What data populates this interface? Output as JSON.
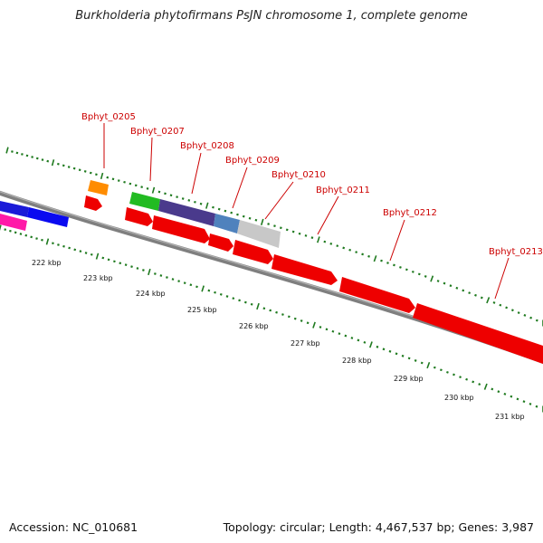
{
  "title": "Burkholderia phytofirmans PsJN chromosome 1, complete genome",
  "accession": "Accession: NC_010681",
  "topology": "Topology: circular; Length: 4,467,537 bp; Genes: 3,987",
  "colors": {
    "tick": "#1f7a1f",
    "backbone": "#7f7f7f",
    "label": "#cc0000"
  },
  "gene_labels": [
    {
      "text": "Bphyt_0205"
    },
    {
      "text": "Bphyt_0207"
    },
    {
      "text": "Bphyt_0208"
    },
    {
      "text": "Bphyt_0209"
    },
    {
      "text": "Bphyt_0210"
    },
    {
      "text": "Bphyt_0211"
    },
    {
      "text": "Bphyt_0212"
    },
    {
      "text": "Bphyt_0213"
    }
  ],
  "kbp_labels": [
    "222 kbp",
    "223 kbp",
    "224 kbp",
    "225 kbp",
    "226 kbp",
    "227 kbp",
    "228 kbp",
    "229 kbp",
    "230 kbp",
    "231 kbp"
  ]
}
